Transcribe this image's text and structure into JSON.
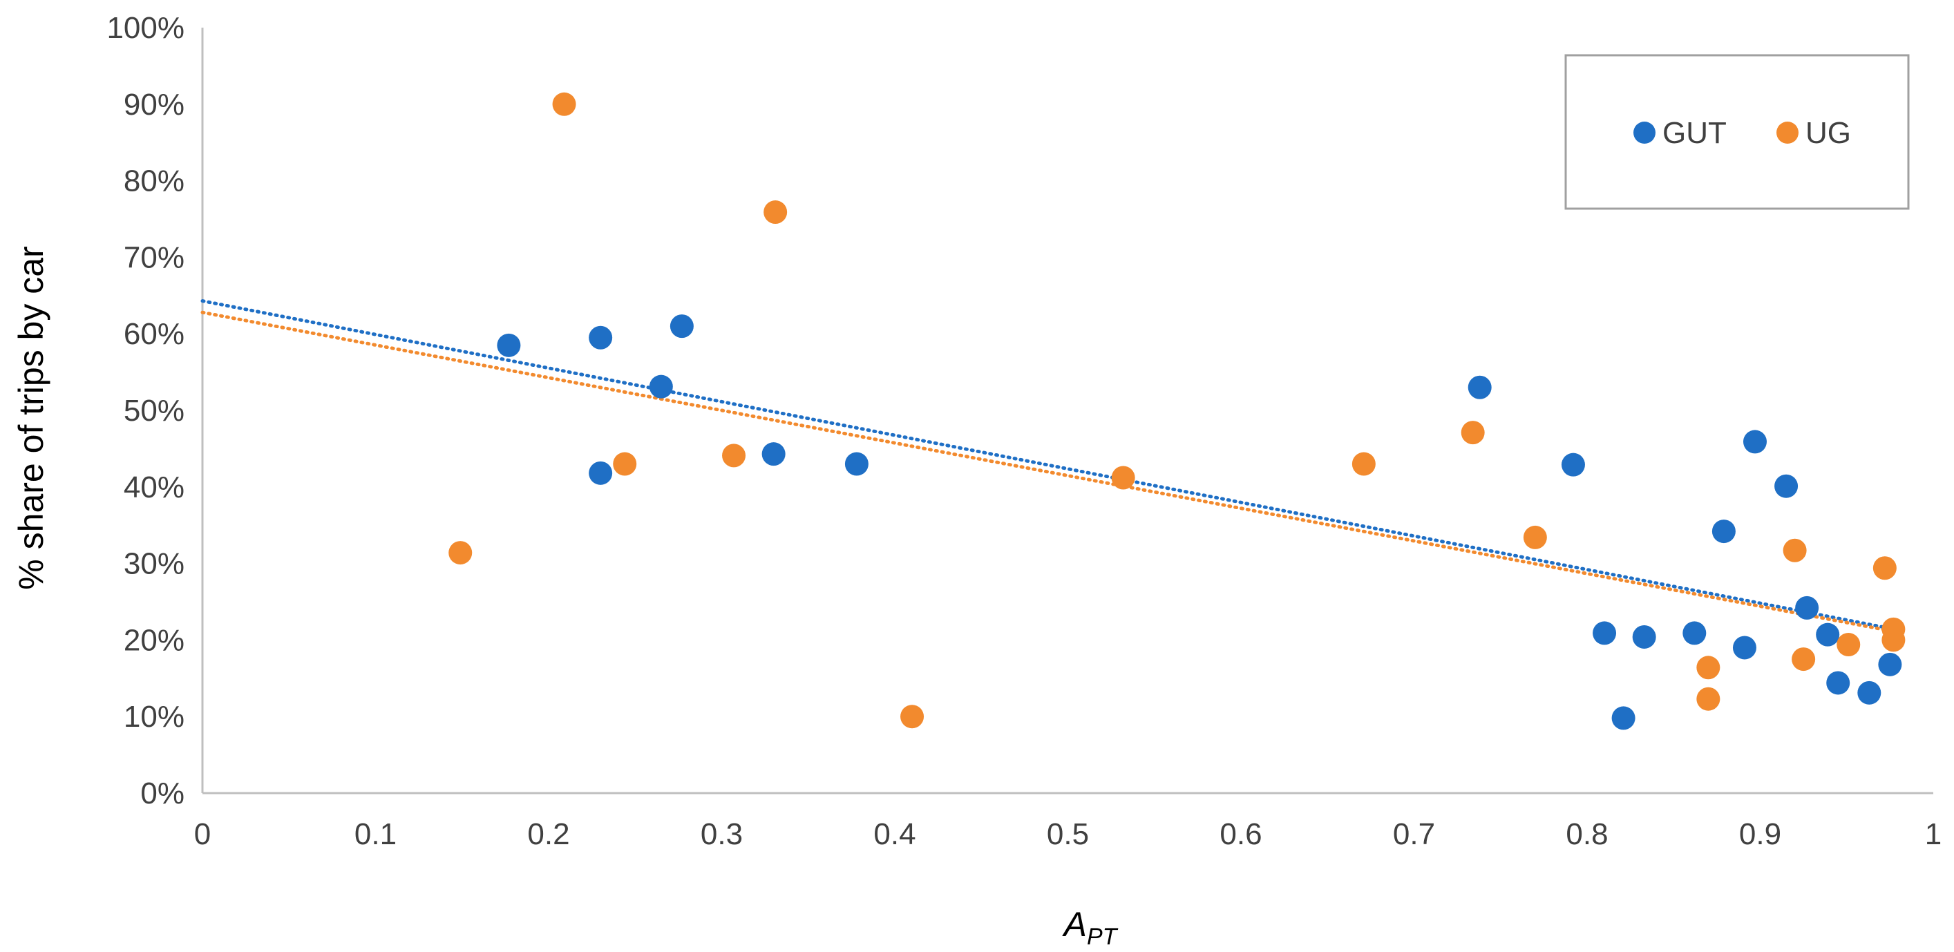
{
  "chart_data": {
    "type": "scatter",
    "title": "",
    "xlabel": "A",
    "xlabel_subscript": "PT",
    "ylabel": "% share of trips by car",
    "xlim": [
      0,
      1
    ],
    "ylim": [
      0,
      100
    ],
    "x_ticks": [
      {
        "value": 0,
        "label": "0"
      },
      {
        "value": 0.1,
        "label": "0.1"
      },
      {
        "value": 0.2,
        "label": "0.2"
      },
      {
        "value": 0.3,
        "label": "0.3"
      },
      {
        "value": 0.4,
        "label": "0.4"
      },
      {
        "value": 0.5,
        "label": "0.5"
      },
      {
        "value": 0.6,
        "label": "0.6"
      },
      {
        "value": 0.7,
        "label": "0.7"
      },
      {
        "value": 0.8,
        "label": "0.8"
      },
      {
        "value": 0.9,
        "label": "0.9"
      },
      {
        "value": 1,
        "label": "1"
      }
    ],
    "y_ticks": [
      {
        "value": 0,
        "label": "0%"
      },
      {
        "value": 10,
        "label": "10%"
      },
      {
        "value": 20,
        "label": "20%"
      },
      {
        "value": 30,
        "label": "30%"
      },
      {
        "value": 40,
        "label": "40%"
      },
      {
        "value": 50,
        "label": "50%"
      },
      {
        "value": 60,
        "label": "60%"
      },
      {
        "value": 70,
        "label": "70%"
      },
      {
        "value": 80,
        "label": "80%"
      },
      {
        "value": 90,
        "label": "90%"
      },
      {
        "value": 100,
        "label": "100%"
      }
    ],
    "grid": false,
    "legend_position": "top-right",
    "series": [
      {
        "name": "GUT",
        "color": "#1f6fc5",
        "points": [
          {
            "x": 0.177,
            "y": 58.5
          },
          {
            "x": 0.23,
            "y": 59.5
          },
          {
            "x": 0.23,
            "y": 41.8
          },
          {
            "x": 0.265,
            "y": 53.1
          },
          {
            "x": 0.277,
            "y": 61.0
          },
          {
            "x": 0.33,
            "y": 44.3
          },
          {
            "x": 0.378,
            "y": 43.0
          },
          {
            "x": 0.738,
            "y": 53.0
          },
          {
            "x": 0.792,
            "y": 42.9
          },
          {
            "x": 0.81,
            "y": 20.9
          },
          {
            "x": 0.821,
            "y": 9.8
          },
          {
            "x": 0.833,
            "y": 20.4
          },
          {
            "x": 0.862,
            "y": 20.9
          },
          {
            "x": 0.879,
            "y": 34.2
          },
          {
            "x": 0.891,
            "y": 19.0
          },
          {
            "x": 0.897,
            "y": 45.9
          },
          {
            "x": 0.915,
            "y": 40.1
          },
          {
            "x": 0.927,
            "y": 24.2
          },
          {
            "x": 0.939,
            "y": 20.7
          },
          {
            "x": 0.945,
            "y": 14.4
          },
          {
            "x": 0.963,
            "y": 13.1
          },
          {
            "x": 0.975,
            "y": 16.8
          }
        ]
      },
      {
        "name": "UG",
        "color": "#f28a2e",
        "points": [
          {
            "x": 0.149,
            "y": 31.4
          },
          {
            "x": 0.209,
            "y": 90.0
          },
          {
            "x": 0.244,
            "y": 43.0
          },
          {
            "x": 0.307,
            "y": 44.1
          },
          {
            "x": 0.331,
            "y": 75.9
          },
          {
            "x": 0.41,
            "y": 10.0
          },
          {
            "x": 0.532,
            "y": 41.2
          },
          {
            "x": 0.671,
            "y": 43.0
          },
          {
            "x": 0.734,
            "y": 47.1
          },
          {
            "x": 0.77,
            "y": 33.4
          },
          {
            "x": 0.87,
            "y": 16.4
          },
          {
            "x": 0.87,
            "y": 12.3
          },
          {
            "x": 0.92,
            "y": 31.7
          },
          {
            "x": 0.925,
            "y": 17.5
          },
          {
            "x": 0.951,
            "y": 19.4
          },
          {
            "x": 0.972,
            "y": 29.4
          },
          {
            "x": 0.977,
            "y": 21.4
          },
          {
            "x": 0.977,
            "y": 20.0
          }
        ]
      }
    ],
    "trendlines": [
      {
        "series": "GUT",
        "style": "dotted",
        "x": [
          0,
          0.98
        ],
        "y": [
          64.3,
          21.3
        ]
      },
      {
        "series": "UG",
        "style": "dotted",
        "x": [
          0,
          0.98
        ],
        "y": [
          62.8,
          21.0
        ]
      }
    ]
  }
}
